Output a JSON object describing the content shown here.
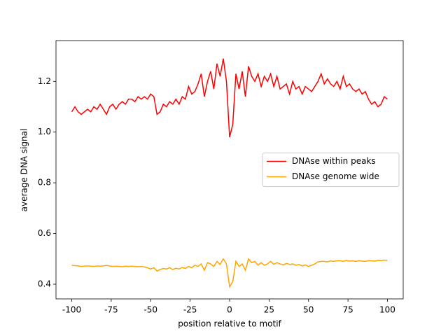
{
  "chart_data": {
    "type": "line",
    "xlabel": "position relative to motif",
    "ylabel": "average DNA signal",
    "x": [
      -100,
      -98,
      -96,
      -94,
      -92,
      -90,
      -88,
      -86,
      -84,
      -82,
      -80,
      -78,
      -76,
      -74,
      -72,
      -70,
      -68,
      -66,
      -64,
      -62,
      -60,
      -58,
      -56,
      -54,
      -52,
      -50,
      -48,
      -46,
      -44,
      -42,
      -40,
      -38,
      -36,
      -34,
      -32,
      -30,
      -28,
      -26,
      -24,
      -22,
      -20,
      -18,
      -16,
      -14,
      -12,
      -10,
      -8,
      -6,
      -4,
      -2,
      0,
      2,
      4,
      6,
      8,
      10,
      12,
      14,
      16,
      18,
      20,
      22,
      24,
      26,
      28,
      30,
      32,
      34,
      36,
      38,
      40,
      42,
      44,
      46,
      48,
      50,
      52,
      54,
      56,
      58,
      60,
      62,
      64,
      66,
      68,
      70,
      72,
      74,
      76,
      78,
      80,
      82,
      84,
      86,
      88,
      90,
      92,
      94,
      96,
      98,
      100
    ],
    "series": [
      {
        "name": "DNAse within peaks",
        "color": "#ff0000",
        "values": [
          1.08,
          1.1,
          1.08,
          1.07,
          1.08,
          1.09,
          1.08,
          1.1,
          1.09,
          1.11,
          1.09,
          1.07,
          1.1,
          1.11,
          1.09,
          1.11,
          1.12,
          1.11,
          1.13,
          1.13,
          1.12,
          1.14,
          1.13,
          1.14,
          1.13,
          1.15,
          1.14,
          1.07,
          1.08,
          1.11,
          1.1,
          1.12,
          1.11,
          1.13,
          1.11,
          1.14,
          1.13,
          1.18,
          1.15,
          1.16,
          1.19,
          1.23,
          1.14,
          1.2,
          1.24,
          1.17,
          1.27,
          1.22,
          1.29,
          1.2,
          0.98,
          1.03,
          1.23,
          1.17,
          1.24,
          1.14,
          1.26,
          1.22,
          1.2,
          1.23,
          1.18,
          1.22,
          1.2,
          1.23,
          1.18,
          1.22,
          1.17,
          1.18,
          1.19,
          1.15,
          1.2,
          1.17,
          1.18,
          1.15,
          1.18,
          1.17,
          1.16,
          1.18,
          1.2,
          1.23,
          1.19,
          1.21,
          1.19,
          1.18,
          1.2,
          1.17,
          1.22,
          1.18,
          1.19,
          1.17,
          1.16,
          1.17,
          1.15,
          1.16,
          1.13,
          1.11,
          1.12,
          1.1,
          1.11,
          1.14,
          1.13
        ]
      },
      {
        "name": "DNAse genome wide",
        "color": "#ffa500",
        "values": [
          0.475,
          0.473,
          0.472,
          0.47,
          0.471,
          0.472,
          0.471,
          0.47,
          0.472,
          0.471,
          0.472,
          0.474,
          0.472,
          0.47,
          0.471,
          0.47,
          0.469,
          0.471,
          0.47,
          0.471,
          0.47,
          0.469,
          0.47,
          0.468,
          0.465,
          0.46,
          0.465,
          0.452,
          0.458,
          0.462,
          0.46,
          0.465,
          0.458,
          0.463,
          0.46,
          0.466,
          0.462,
          0.47,
          0.465,
          0.475,
          0.47,
          0.48,
          0.455,
          0.485,
          0.48,
          0.47,
          0.49,
          0.478,
          0.5,
          0.48,
          0.39,
          0.41,
          0.49,
          0.47,
          0.48,
          0.455,
          0.5,
          0.485,
          0.49,
          0.475,
          0.485,
          0.475,
          0.48,
          0.49,
          0.478,
          0.485,
          0.48,
          0.476,
          0.482,
          0.478,
          0.48,
          0.475,
          0.478,
          0.472,
          0.476,
          0.47,
          0.475,
          0.48,
          0.488,
          0.49,
          0.49,
          0.488,
          0.492,
          0.49,
          0.492,
          0.493,
          0.49,
          0.493,
          0.491,
          0.492,
          0.49,
          0.492,
          0.491,
          0.49,
          0.493,
          0.492,
          0.491,
          0.494,
          0.493,
          0.495,
          0.494
        ]
      }
    ],
    "xlim": [
      -110,
      110
    ],
    "ylim": [
      0.342,
      1.361
    ],
    "xticks": [
      -100,
      -75,
      -50,
      -25,
      0,
      25,
      50,
      75,
      100
    ],
    "yticks": [
      0.4,
      0.6,
      0.8,
      {
        "value": 1,
        "label": "1.0"
      },
      1.2
    ],
    "legend": "center right"
  }
}
